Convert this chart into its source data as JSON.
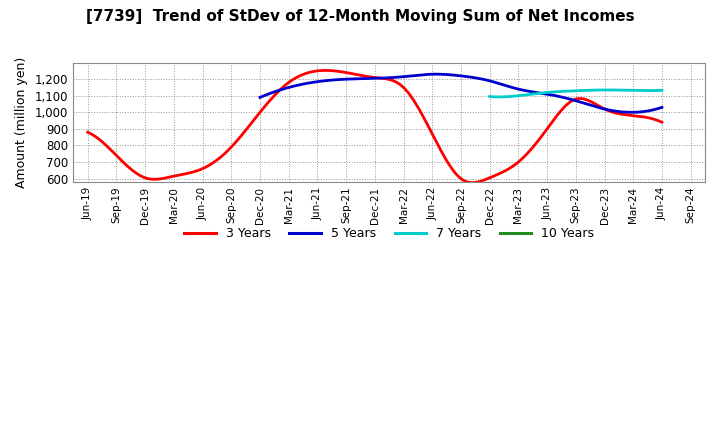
{
  "title": "[7739]  Trend of StDev of 12-Month Moving Sum of Net Incomes",
  "ylabel": "Amount (million yen)",
  "background_color": "#ffffff",
  "plot_bg_color": "#ffffff",
  "grid_color": "#aaaaaa",
  "ylim": [
    580,
    1300
  ],
  "yticks": [
    600,
    700,
    800,
    900,
    1000,
    1100,
    1200
  ],
  "xtick_labels": [
    "Jun-19",
    "Sep-19",
    "Dec-19",
    "Mar-20",
    "Jun-20",
    "Sep-20",
    "Dec-20",
    "Mar-21",
    "Jun-21",
    "Sep-21",
    "Dec-21",
    "Mar-22",
    "Jun-22",
    "Sep-22",
    "Dec-22",
    "Mar-23",
    "Jun-23",
    "Sep-23",
    "Dec-23",
    "Mar-24",
    "Jun-24",
    "Sep-24"
  ],
  "series": {
    "3 Years": {
      "color": "#ff0000",
      "linewidth": 2.0,
      "values": [
        880,
        740,
        605,
        615,
        660,
        790,
        1000,
        1180,
        1250,
        1240,
        1210,
        1150,
        870,
        600,
        605,
        700,
        900,
        1080,
        1020,
        980,
        940,
        null
      ]
    },
    "5 Years": {
      "color": "#0000cc",
      "linewidth": 2.0,
      "values": [
        null,
        null,
        null,
        null,
        null,
        null,
        1090,
        1150,
        1185,
        1200,
        1205,
        1215,
        1230,
        1220,
        1190,
        1140,
        1110,
        1070,
        1020,
        1000,
        1030,
        null
      ]
    },
    "7 Years": {
      "color": "#00cccc",
      "linewidth": 2.0,
      "values": [
        null,
        null,
        null,
        null,
        null,
        null,
        null,
        null,
        null,
        null,
        null,
        null,
        null,
        null,
        1095,
        1100,
        1120,
        1130,
        1135,
        1132,
        1133,
        null
      ]
    },
    "10 Years": {
      "color": "#228B22",
      "linewidth": 2.0,
      "values": [
        null,
        null,
        null,
        null,
        null,
        null,
        null,
        null,
        null,
        null,
        null,
        null,
        null,
        null,
        null,
        null,
        null,
        null,
        null,
        null,
        null,
        null
      ]
    }
  }
}
